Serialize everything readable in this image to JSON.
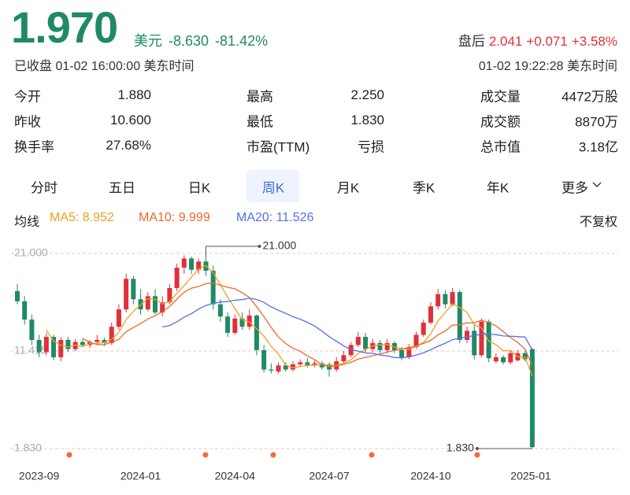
{
  "header": {
    "price": "1.970",
    "currency": "美元",
    "change": "-8.630",
    "change_pct": "-81.42%",
    "status": "已收盘 01-02 16:00:00 美东时间",
    "after_hours": {
      "label": "盘后",
      "price": "2.041",
      "change": "+0.071",
      "change_pct": "+3.58%",
      "time": "01-02 19:22:28 美东时间"
    }
  },
  "stats": [
    {
      "label": "今开",
      "value": "1.880"
    },
    {
      "label": "最高",
      "value": "2.250"
    },
    {
      "label": "成交量",
      "value": "4472万股"
    },
    {
      "label": "昨收",
      "value": "10.600"
    },
    {
      "label": "最低",
      "value": "1.830"
    },
    {
      "label": "成交额",
      "value": "8870万"
    },
    {
      "label": "换手率",
      "value": "27.68%"
    },
    {
      "label": "市盈(TTM)",
      "value": "亏损"
    },
    {
      "label": "总市值",
      "value": "3.18亿"
    }
  ],
  "tabs": {
    "items": [
      "分时",
      "五日",
      "日K",
      "周K",
      "月K",
      "季K",
      "年K",
      "更多"
    ],
    "active": 3
  },
  "indicators": {
    "label": "均线",
    "adjust": "不复权"
  },
  "chart_data": {
    "type": "candlestick",
    "up_color": "#e0303a",
    "down_color": "#1f8a65",
    "grid": true,
    "ylim": [
      1.83,
      21
    ],
    "yticks": [
      {
        "value": 21,
        "label": "21.000"
      },
      {
        "value": 11.415,
        "label": "11.415"
      },
      {
        "value": 1.83,
        "label": "1.830"
      }
    ],
    "categories": [
      null,
      null,
      null,
      "2023-09",
      null,
      null,
      null,
      null,
      null,
      null,
      null,
      null,
      null,
      null,
      null,
      null,
      null,
      "2024-01",
      null,
      null,
      null,
      null,
      null,
      null,
      null,
      null,
      null,
      null,
      null,
      null,
      "2024-04",
      null,
      null,
      null,
      null,
      null,
      null,
      null,
      null,
      null,
      null,
      null,
      null,
      "2024-07",
      null,
      null,
      null,
      null,
      null,
      null,
      null,
      null,
      null,
      null,
      null,
      null,
      null,
      "2024-10",
      null,
      null,
      null,
      null,
      null,
      null,
      null,
      null,
      null,
      null,
      null,
      null,
      null,
      "2025-01"
    ],
    "open": [
      17.3,
      16.3,
      14.5,
      12.5,
      11.3,
      12.8,
      10.8,
      12.5,
      11.6,
      12.3,
      12.0,
      12.3,
      12.5,
      12.2,
      13.8,
      15.5,
      18.5,
      16.5,
      15.5,
      16.8,
      15.2,
      16.2,
      17.6,
      19.6,
      20.5,
      19.4,
      20.2,
      19.3,
      16,
      14.8,
      13.2,
      14.6,
      13.8,
      14.9,
      11.5,
      9.6,
      9.4,
      10,
      9.6,
      10.1,
      10.3,
      10,
      10.2,
      10.1,
      9.6,
      10.4,
      11,
      12,
      12.8,
      11.6,
      12.2,
      11.5,
      12.2,
      11.5,
      10.8,
      11.8,
      13,
      14.2,
      15.8,
      17,
      16,
      17.2,
      12.5,
      13.4,
      11,
      14.3,
      10.4,
      10.8,
      10.3,
      10.5,
      11.2,
      11.6
    ],
    "high": [
      18,
      16.8,
      15,
      13,
      13.2,
      13,
      12.8,
      12.8,
      12.6,
      12.6,
      12.5,
      13,
      12.7,
      14.2,
      16,
      19,
      18.8,
      17.5,
      17.2,
      17.5,
      16.8,
      18,
      20,
      20.8,
      20.7,
      20.5,
      21,
      19.8,
      16.5,
      15.2,
      15,
      15.2,
      15.5,
      15,
      12,
      10.2,
      10.3,
      10.3,
      10.4,
      10.6,
      10.7,
      10.5,
      10.4,
      10.3,
      10.8,
      11.4,
      12.3,
      13.3,
      13.2,
      12.6,
      12.5,
      12.6,
      12.4,
      11.8,
      12.1,
      13.3,
      14.5,
      16.2,
      17.5,
      17.4,
      17.6,
      17.4,
      13.8,
      14,
      14.6,
      14.5,
      11.2,
      11,
      11.5,
      11.5,
      11.4,
      11.7
    ],
    "low": [
      16,
      14,
      12,
      10.8,
      11,
      10.5,
      10.4,
      11.3,
      11.4,
      11.8,
      11.7,
      12,
      11.9,
      12,
      13.5,
      15.2,
      16,
      15,
      15.3,
      15,
      14.8,
      16,
      17.3,
      19,
      19,
      19,
      18.8,
      15.5,
      14.3,
      12.8,
      13,
      13.5,
      13.5,
      11,
      9.3,
      9.2,
      9.2,
      9.4,
      9.4,
      9.9,
      9.8,
      9.8,
      9.6,
      8.9,
      9.4,
      10.2,
      10.8,
      11.8,
      11.3,
      11.3,
      11.2,
      11.2,
      11.2,
      10.5,
      10.6,
      11.6,
      12.8,
      14,
      15.5,
      15.6,
      15.8,
      12.2,
      12.2,
      10.6,
      10.8,
      10.3,
      10.2,
      10.1,
      10.1,
      10.4,
      10.4,
      1.83
    ],
    "close": [
      16.3,
      14.5,
      12.5,
      11.3,
      12.8,
      10.8,
      12.5,
      11.6,
      12.3,
      12.0,
      12.3,
      12.5,
      12.2,
      13.8,
      15.5,
      18.5,
      16.5,
      15.5,
      16.8,
      15.2,
      16.2,
      17.6,
      19.6,
      20.5,
      19.4,
      20.2,
      19.3,
      16,
      14.8,
      13.2,
      14.6,
      13.8,
      14.9,
      11.5,
      9.6,
      9.5,
      10,
      9.6,
      10.1,
      10.3,
      10,
      10.2,
      9.8,
      9.6,
      10.4,
      11,
      12,
      12.8,
      11.6,
      12.2,
      11.5,
      12.2,
      11.5,
      10.8,
      11.8,
      13,
      14.2,
      15.8,
      17,
      16,
      17.2,
      12.5,
      13.4,
      11,
      14.3,
      10.7,
      10.8,
      10.3,
      11.2,
      11.2,
      10.6,
      1.97
    ],
    "series": [
      {
        "name": "MA5: 8.952",
        "color": "#f0a020",
        "values": [
          null,
          null,
          null,
          null,
          13.48,
          12.38,
          11.98,
          11.8,
          12.0,
          11.84,
          12.14,
          12.14,
          12.26,
          12.56,
          13.26,
          14.5,
          15.3,
          15.96,
          16.56,
          16.5,
          16.04,
          16.26,
          17.08,
          17.82,
          18.66,
          19.46,
          19.8,
          19.08,
          17.94,
          16.7,
          15.58,
          14.48,
          14.26,
          13.6,
          12.88,
          11.86,
          11.1,
          10.04,
          9.76,
          9.9,
          10,
          10.04,
          10.08,
          9.98,
          10,
          10.2,
          10.56,
          11.16,
          11.56,
          11.92,
          12.02,
          12.06,
          11.8,
          11.64,
          11.56,
          11.86,
          12.26,
          13.12,
          14.36,
          15.2,
          16.04,
          15.7,
          15.22,
          14.02,
          13.68,
          12.38,
          12.04,
          11.42,
          11.46,
          10.84,
          10.82,
          8.952
        ]
      },
      {
        "name": "MA10: 9.999",
        "color": "#ec6a2c",
        "values": [
          null,
          null,
          null,
          null,
          null,
          null,
          null,
          null,
          null,
          12.66,
          12.26,
          12.06,
          12.03,
          12.28,
          12.55,
          13.32,
          13.72,
          14.11,
          14.56,
          14.88,
          15.27,
          15.78,
          16.52,
          17.19,
          17.58,
          17.75,
          18.03,
          18.08,
          17.88,
          17.68,
          17.52,
          17.14,
          16.67,
          15.77,
          14.79,
          13.72,
          12.79,
          12.15,
          11.68,
          11.39,
          10.93,
          10.57,
          10.06,
          9.87,
          9.95,
          10.1,
          10.3,
          10.62,
          10.77,
          10.96,
          11.11,
          11.31,
          11.48,
          11.6,
          11.74,
          11.94,
          12.16,
          12.46,
          13.0,
          13.38,
          13.95,
          13.98,
          14.17,
          14.19,
          14.44,
          14.21,
          13.87,
          13.32,
          12.74,
          12.26,
          11.6,
          9.999
        ]
      },
      {
        "name": "MA20: 11.526",
        "color": "#5470e8",
        "values": [
          null,
          null,
          null,
          null,
          null,
          null,
          null,
          null,
          null,
          null,
          null,
          null,
          null,
          null,
          null,
          null,
          null,
          null,
          null,
          null,
          13.77,
          13.92,
          14.28,
          14.74,
          15.07,
          15.54,
          15.88,
          16.1,
          16.22,
          16.28,
          16.4,
          16.46,
          16.6,
          16.48,
          16.19,
          15.74,
          15.41,
          15.12,
          14.78,
          14.54,
          14.23,
          13.86,
          13.37,
          12.82,
          12.37,
          11.91,
          11.55,
          11.39,
          11.23,
          11.18,
          11.02,
          10.94,
          10.77,
          10.74,
          10.85,
          11.02,
          11.23,
          11.54,
          11.89,
          12.17,
          12.53,
          12.65,
          12.83,
          12.9,
          13.09,
          13.08,
          13.02,
          12.89,
          12.87,
          12.82,
          12.78,
          11.526
        ]
      }
    ],
    "annotations": [
      {
        "value": 21,
        "label": "21.000"
      },
      {
        "value": 1.83,
        "label": "1.830"
      }
    ]
  }
}
